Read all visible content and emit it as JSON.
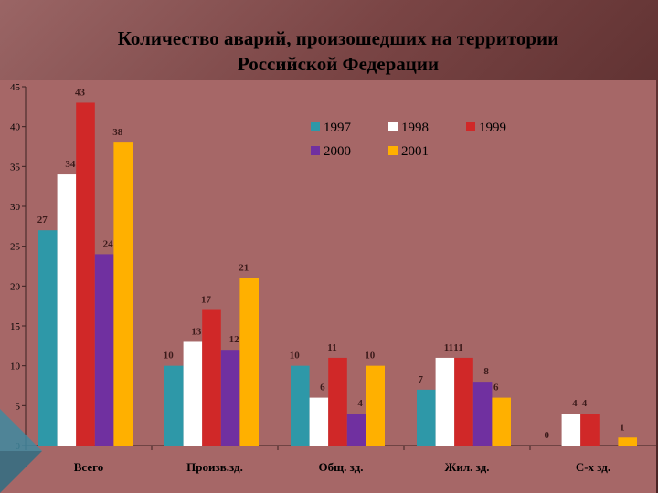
{
  "title_line1": "Количество аварий, произошедших на территории",
  "title_line2": "Российской Федерации",
  "chart_data": {
    "type": "bar",
    "categories": [
      "Всего",
      "Произв.зд.",
      "Общ. зд.",
      "Жил. зд.",
      "С-х зд."
    ],
    "series": [
      {
        "name": "1997",
        "color": "#2e98a8",
        "values": [
          27,
          10,
          10,
          7,
          0
        ]
      },
      {
        "name": "1998",
        "color": "#ffffff",
        "values": [
          34,
          13,
          6,
          11,
          4
        ]
      },
      {
        "name": "1999",
        "color": "#d02828",
        "values": [
          43,
          17,
          11,
          11,
          4
        ]
      },
      {
        "name": "2000",
        "color": "#7030a0",
        "values": [
          24,
          12,
          4,
          8,
          0
        ]
      },
      {
        "name": "2001",
        "color": "#ffb000",
        "values": [
          38,
          21,
          10,
          6,
          1
        ]
      }
    ],
    "data_labels": [
      [
        "27",
        "34",
        "43",
        "24",
        "38"
      ],
      [
        "10",
        "13",
        "17",
        "12",
        "21"
      ],
      [
        "10",
        "6",
        "11",
        "4",
        "10"
      ],
      [
        "7",
        "11",
        "11",
        "8",
        "6"
      ],
      [
        "0",
        "4",
        "4",
        "",
        "1"
      ]
    ],
    "ylim": [
      0,
      45
    ],
    "yticks": [
      0,
      5,
      10,
      15,
      20,
      25,
      30,
      35,
      40,
      45
    ],
    "grid": false,
    "legend_position": "top-right"
  }
}
